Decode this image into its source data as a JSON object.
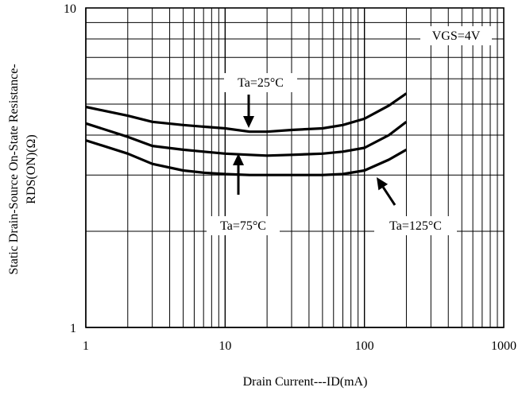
{
  "chart_data": {
    "type": "line",
    "title": "",
    "xlabel": "Drain Current---ID(mA)",
    "ylabel_line1": "Static Drain-Source On-State Resistance-",
    "ylabel_line2": "RDS(ON)(Ω)",
    "x_scale": "log",
    "y_scale": "log",
    "xlim": [
      1,
      1000
    ],
    "ylim": [
      1,
      10
    ],
    "x_tick_labels": [
      "1",
      "10",
      "100",
      "1000"
    ],
    "y_tick_labels": [
      "1",
      "10"
    ],
    "grid": true,
    "legend": "none",
    "series": [
      {
        "name": "Ta=25°C",
        "x": [
          1,
          2,
          3,
          5,
          7,
          10,
          15,
          20,
          30,
          50,
          70,
          100,
          150,
          200
        ],
        "y": [
          4.9,
          4.6,
          4.4,
          4.3,
          4.25,
          4.2,
          4.1,
          4.1,
          4.15,
          4.2,
          4.3,
          4.5,
          4.95,
          5.4
        ]
      },
      {
        "name": "Ta=75°C",
        "x": [
          1,
          2,
          3,
          5,
          7,
          10,
          15,
          20,
          30,
          50,
          70,
          100,
          150,
          200
        ],
        "y": [
          4.35,
          3.95,
          3.7,
          3.6,
          3.55,
          3.5,
          3.47,
          3.45,
          3.47,
          3.5,
          3.55,
          3.65,
          4.0,
          4.4
        ]
      },
      {
        "name": "Ta=125°C",
        "x": [
          1,
          2,
          3,
          5,
          7,
          10,
          15,
          20,
          30,
          50,
          70,
          100,
          150,
          200
        ],
        "y": [
          3.85,
          3.5,
          3.25,
          3.1,
          3.05,
          3.02,
          3.0,
          3.0,
          3.0,
          3.0,
          3.02,
          3.1,
          3.35,
          3.6
        ]
      }
    ],
    "annotations": [
      {
        "text": "VGS=4V"
      },
      {
        "text": "Ta=25°C"
      },
      {
        "text": "Ta=75°C"
      },
      {
        "text": "Ta=125°C"
      }
    ]
  }
}
